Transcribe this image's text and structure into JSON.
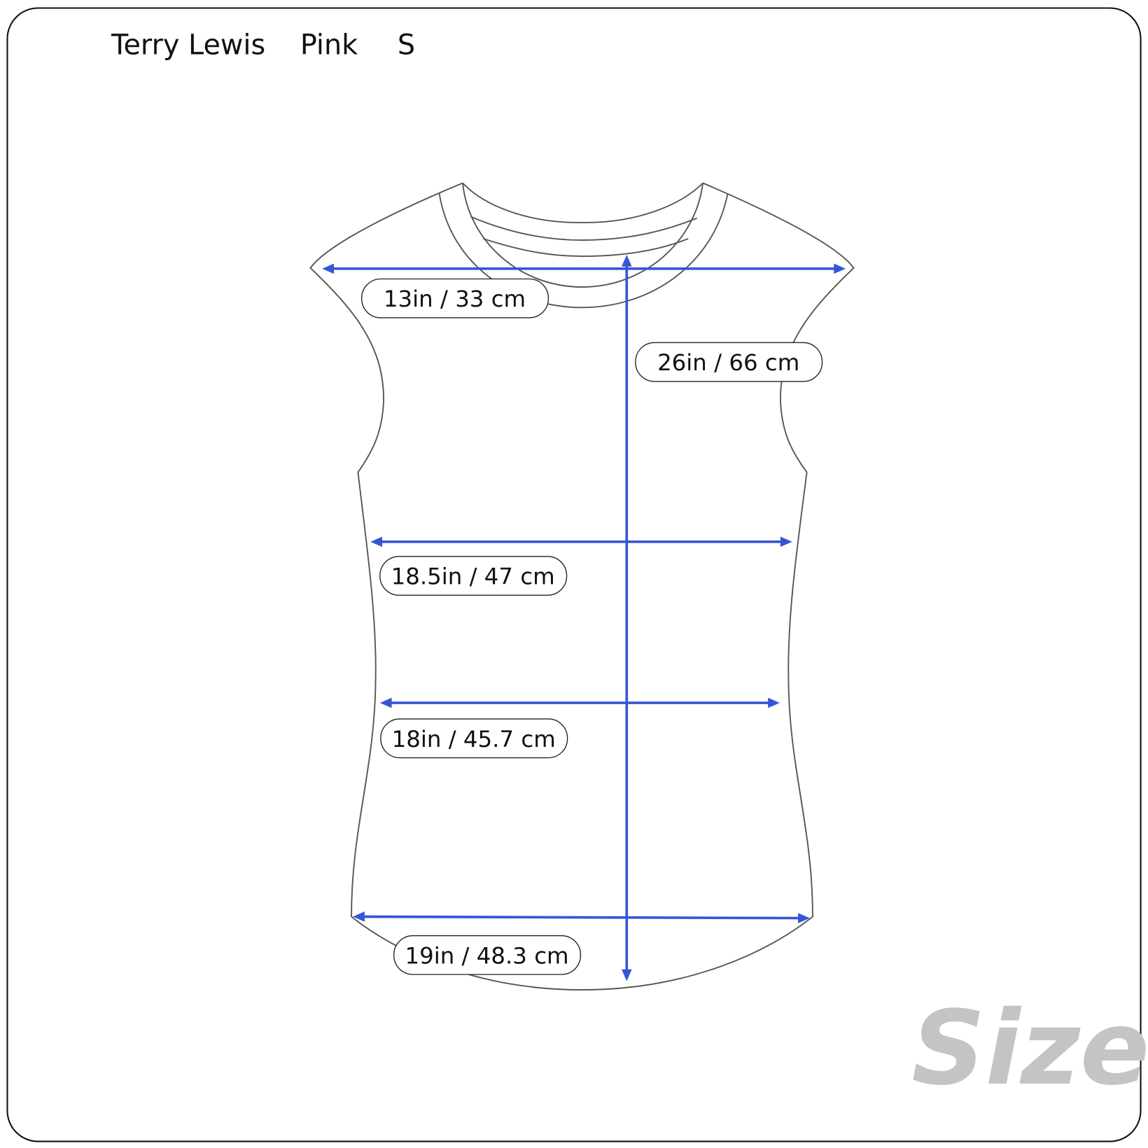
{
  "header": {
    "brand": "Terry Lewis",
    "color": "Pink",
    "size": "S"
  },
  "measurements": [
    {
      "name": "shoulder",
      "label": "13in / 33 cm"
    },
    {
      "name": "length",
      "label": "26in / 66 cm"
    },
    {
      "name": "chest",
      "label": "18.5in / 47 cm"
    },
    {
      "name": "waist",
      "label": "18in / 45.7 cm"
    },
    {
      "name": "hem",
      "label": "19in / 48.3 cm"
    }
  ],
  "logo": {
    "text": "Size.ly"
  },
  "colors": {
    "arrow": "#3556d4",
    "outline": "#555555",
    "logo": "#c4c4c4",
    "logo_dot": "#a8c8f0"
  }
}
